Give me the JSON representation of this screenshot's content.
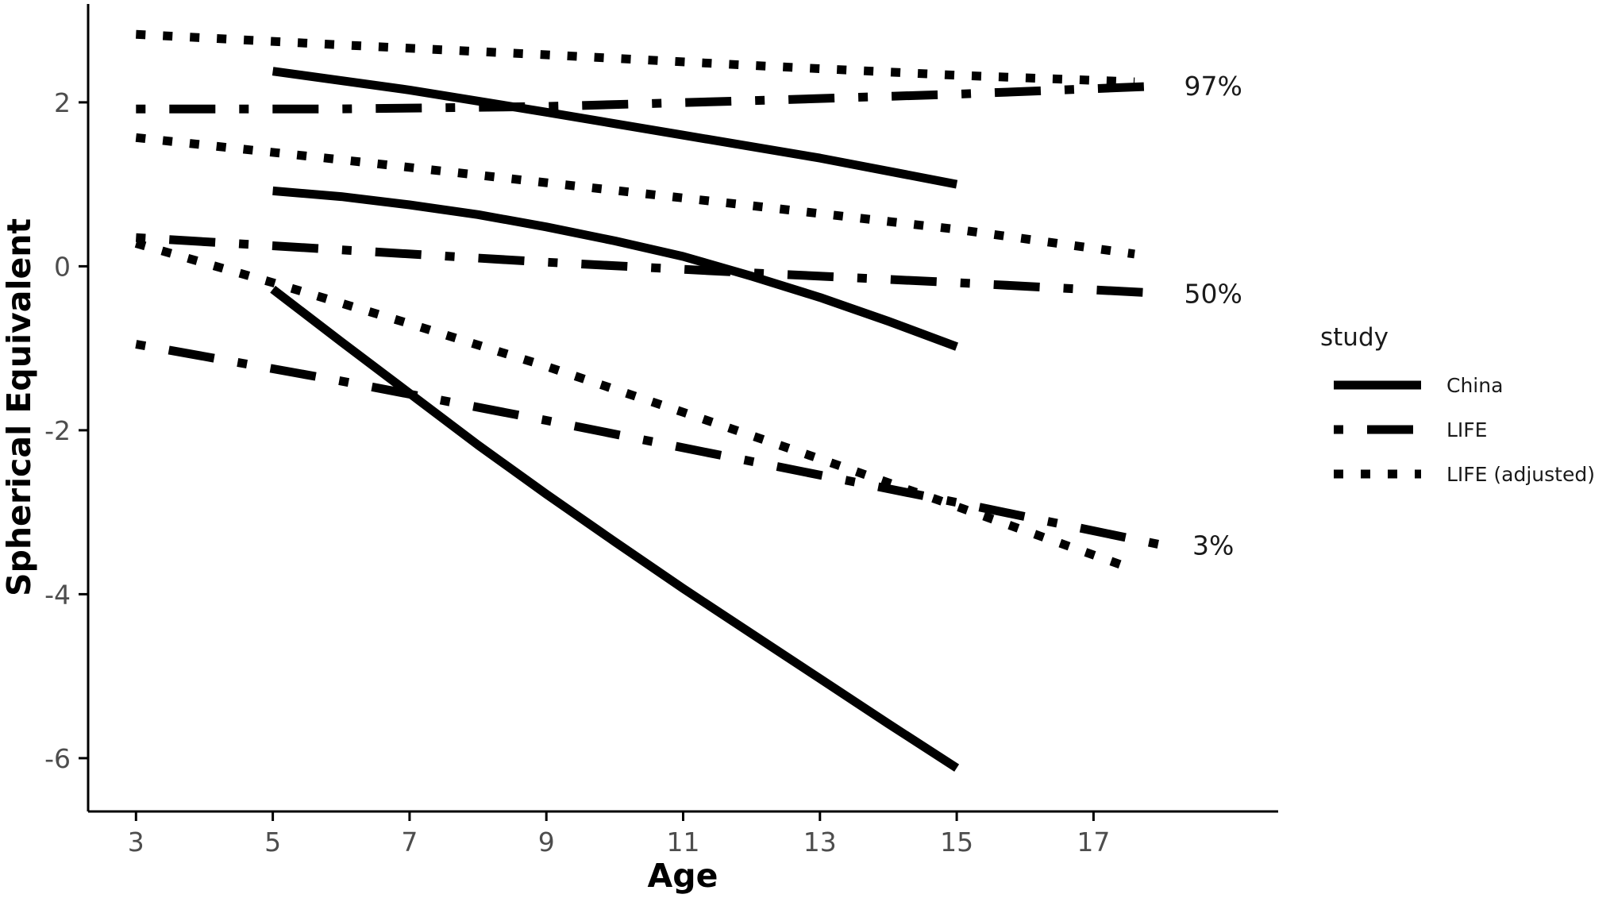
{
  "chart_data": {
    "type": "line",
    "xlabel": "Age",
    "ylabel": "Spherical Equivalent",
    "xlim": [
      2.3,
      19.7
    ],
    "ylim": [
      -6.65,
      3.2
    ],
    "x_ticks": [
      3,
      5,
      7,
      9,
      11,
      13,
      15,
      17
    ],
    "y_ticks": [
      -6,
      -4,
      -2,
      0,
      2
    ],
    "y_tick_labels": [
      "-6",
      "-4",
      "-2",
      "0",
      "2"
    ],
    "grid": false,
    "legend": {
      "title": "study",
      "position": "right",
      "entries": [
        "China",
        "LIFE",
        "LIFE (adjusted)"
      ]
    },
    "percentile_labels": [
      {
        "text": "97%",
        "x": 18.75,
        "y": 2.2
      },
      {
        "text": "50%",
        "x": 18.75,
        "y": -0.33
      },
      {
        "text": "3%",
        "x": 18.75,
        "y": -3.4
      }
    ],
    "series": [
      {
        "study": "China",
        "percentile": "97%",
        "x": [
          5,
          7,
          9,
          11,
          13,
          15
        ],
        "y": [
          2.38,
          2.15,
          1.88,
          1.6,
          1.32,
          1.0
        ]
      },
      {
        "study": "China",
        "percentile": "50%",
        "x": [
          5,
          6,
          7,
          8,
          9,
          10,
          11,
          12,
          13,
          14,
          15
        ],
        "y": [
          0.92,
          0.85,
          0.75,
          0.63,
          0.48,
          0.31,
          0.12,
          -0.12,
          -0.38,
          -0.67,
          -0.98
        ]
      },
      {
        "study": "China",
        "percentile": "3%",
        "x": [
          5,
          6,
          7,
          8,
          9,
          10,
          11,
          12,
          13,
          14,
          15
        ],
        "y": [
          -0.28,
          -0.92,
          -1.55,
          -2.18,
          -2.78,
          -3.36,
          -3.93,
          -4.48,
          -5.03,
          -5.58,
          -6.12
        ]
      },
      {
        "study": "LIFE",
        "percentile": "97%",
        "x": [
          3,
          6,
          9,
          12,
          15,
          18
        ],
        "y": [
          1.92,
          1.92,
          1.95,
          2.02,
          2.1,
          2.2
        ]
      },
      {
        "study": "LIFE",
        "percentile": "50%",
        "x": [
          3,
          6,
          9,
          12,
          15,
          18
        ],
        "y": [
          0.35,
          0.2,
          0.05,
          -0.08,
          -0.2,
          -0.33
        ]
      },
      {
        "study": "LIFE",
        "percentile": "3%",
        "x": [
          3,
          6,
          9,
          12,
          15,
          18
        ],
        "y": [
          -0.95,
          -1.4,
          -1.88,
          -2.38,
          -2.88,
          -3.4
        ]
      },
      {
        "study": "LIFE (adjusted)",
        "percentile": "97%",
        "x": [
          3,
          6,
          9,
          12,
          15,
          17.6
        ],
        "y": [
          2.83,
          2.7,
          2.58,
          2.45,
          2.33,
          2.25
        ]
      },
      {
        "study": "LIFE (adjusted)",
        "percentile": "50%",
        "x": [
          3,
          6,
          9,
          12,
          15,
          17.6
        ],
        "y": [
          1.57,
          1.3,
          1.02,
          0.74,
          0.45,
          0.15
        ]
      },
      {
        "study": "LIFE (adjusted)",
        "percentile": "3%",
        "x": [
          3,
          5,
          7,
          9,
          11,
          13,
          15,
          17.6
        ],
        "y": [
          0.28,
          -0.2,
          -0.7,
          -1.22,
          -1.78,
          -2.35,
          -2.93,
          -3.7
        ]
      }
    ]
  }
}
